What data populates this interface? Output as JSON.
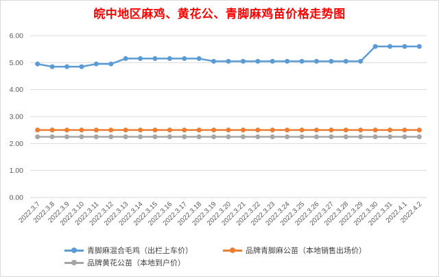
{
  "chart_data": {
    "type": "line",
    "title": "皖中地区麻鸡、黄花公、青脚麻鸡苗价格走势图",
    "categories": [
      "2022.3.7",
      "2022.3.8",
      "2022.3.9",
      "2022.3.10",
      "2022.3.11",
      "2022.3.12",
      "2022.3.13",
      "2022.3.14",
      "2022.3.15",
      "2022.3.16",
      "2022.3.17",
      "2022.3.18",
      "2022.3.19",
      "2022.3.20",
      "2022.3.21",
      "2022.3.22",
      "2022.3.23",
      "2022.3.24",
      "2022.3.25",
      "2022.3.26",
      "2022.3.27",
      "2022.3.28",
      "2022.3.29",
      "2022.3.30",
      "2022.3.31",
      "2022.4.1",
      "2022.4.2"
    ],
    "yticks": [
      "0.00",
      "1.00",
      "2.00",
      "3.00",
      "4.00",
      "5.00",
      "6.00"
    ],
    "ylim": [
      0,
      6
    ],
    "grid": true,
    "legend_position": "bottom",
    "series": [
      {
        "name": "青脚麻混合毛鸡（出栏上车价）",
        "color": "#5b9bd5",
        "values": [
          4.95,
          4.85,
          4.85,
          4.85,
          4.95,
          4.95,
          5.15,
          5.15,
          5.15,
          5.15,
          5.15,
          5.15,
          5.05,
          5.05,
          5.05,
          5.05,
          5.05,
          5.05,
          5.05,
          5.05,
          5.05,
          5.05,
          5.05,
          5.6,
          5.6,
          5.6,
          5.6
        ]
      },
      {
        "name": "品牌青脚麻公苗（本地销售出场价）",
        "color": "#ed7d31",
        "values": [
          2.5,
          2.5,
          2.5,
          2.5,
          2.5,
          2.5,
          2.5,
          2.5,
          2.5,
          2.5,
          2.5,
          2.5,
          2.5,
          2.5,
          2.5,
          2.5,
          2.5,
          2.5,
          2.5,
          2.5,
          2.5,
          2.5,
          2.5,
          2.5,
          2.5,
          2.5,
          2.5
        ]
      },
      {
        "name": "品牌黄花公苗（本地到户价）",
        "color": "#a5a5a5",
        "values": [
          2.25,
          2.25,
          2.25,
          2.25,
          2.25,
          2.25,
          2.25,
          2.25,
          2.25,
          2.25,
          2.25,
          2.25,
          2.25,
          2.25,
          2.25,
          2.25,
          2.25,
          2.25,
          2.25,
          2.25,
          2.25,
          2.25,
          2.25,
          2.25,
          2.25,
          2.25,
          2.25
        ]
      }
    ]
  }
}
